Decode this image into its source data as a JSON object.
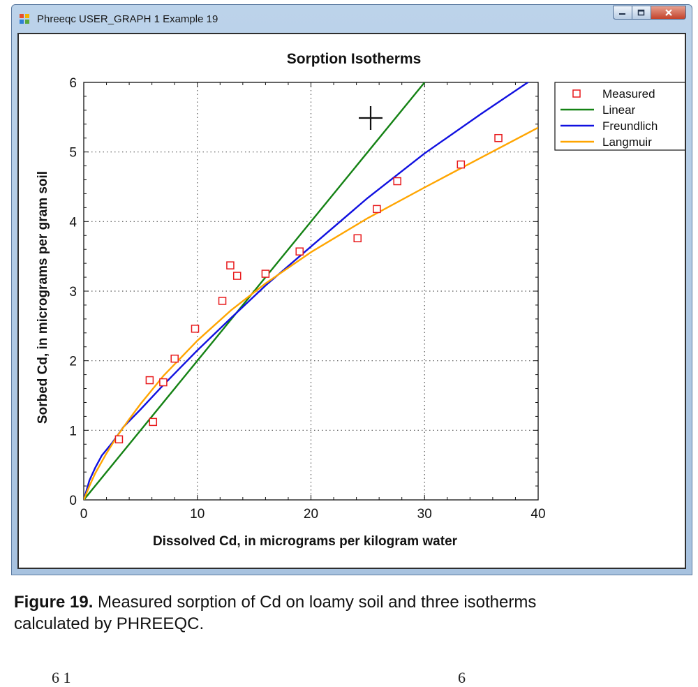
{
  "window": {
    "title": "Phreeqc USER_GRAPH 1 Example 19"
  },
  "colors": {
    "measured": "#e8191b",
    "linear": "#148214",
    "freundlich": "#1010e0",
    "langmuir": "#ffa500",
    "grid": "#555555"
  },
  "chart_data": {
    "type": "scatter",
    "title": "Sorption Isotherms",
    "xlabel": "Dissolved Cd, in micrograms per kilogram water",
    "ylabel": "Sorbed Cd, in micrograms per gram soil",
    "xlim": [
      0,
      40
    ],
    "ylim": [
      0,
      6
    ],
    "xticks": [
      0,
      10,
      20,
      30,
      40
    ],
    "yticks": [
      0,
      1,
      2,
      3,
      4,
      5,
      6
    ],
    "grid": true,
    "legend_position": "right",
    "series": [
      {
        "name": "Measured",
        "kind": "points",
        "marker": "open-square",
        "x": [
          3.1,
          5.8,
          6.1,
          7.0,
          8.0,
          9.8,
          12.2,
          12.9,
          13.5,
          16.0,
          19.0,
          24.1,
          25.8,
          27.6,
          33.2,
          36.5
        ],
        "y": [
          0.87,
          1.72,
          1.12,
          1.69,
          2.03,
          2.46,
          2.86,
          3.37,
          3.22,
          3.25,
          3.57,
          3.76,
          4.18,
          4.58,
          4.82,
          5.2
        ]
      },
      {
        "name": "Linear",
        "kind": "line",
        "x": [
          0,
          30
        ],
        "y": [
          0,
          6
        ]
      },
      {
        "name": "Freundlich",
        "kind": "line",
        "x": [
          0,
          0.5,
          1,
          1.6,
          2.5,
          3.5,
          5,
          7,
          10,
          13,
          16,
          20,
          25,
          30,
          35,
          40
        ],
        "y": [
          0,
          0.28,
          0.46,
          0.64,
          0.82,
          1.05,
          1.3,
          1.65,
          2.15,
          2.62,
          3.08,
          3.64,
          4.34,
          4.98,
          5.55,
          6.1
        ]
      },
      {
        "name": "Langmuir",
        "kind": "line",
        "x": [
          0,
          0.5,
          1,
          2,
          3,
          4,
          5,
          7,
          10,
          13,
          16,
          20,
          25,
          30,
          35,
          40
        ],
        "y": [
          0,
          0.2,
          0.38,
          0.67,
          0.93,
          1.16,
          1.38,
          1.78,
          2.29,
          2.73,
          3.11,
          3.56,
          4.05,
          4.49,
          4.92,
          5.35
        ]
      }
    ]
  },
  "caption": {
    "label": "Figure 19.",
    "text_line1": " Measured sorption of Cd on loamy soil and three isotherms",
    "text_line2": "calculated by PHREEQC."
  },
  "page_fragments": {
    "left": "6  1",
    "right": "6"
  }
}
